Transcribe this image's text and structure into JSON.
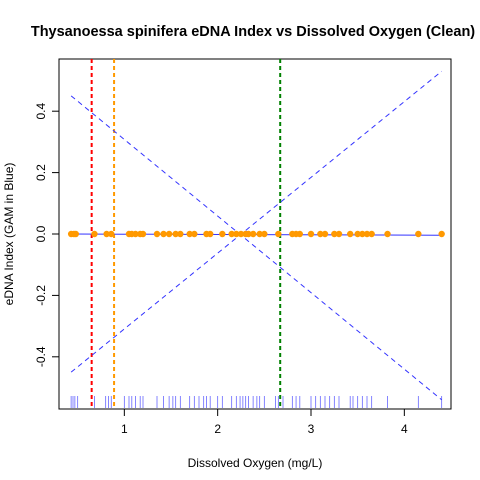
{
  "chart_data": {
    "type": "scatter",
    "title": "Thysanoessa spinifera eDNA Index vs Dissolved Oxygen (Clean)",
    "xlabel": "Dissolved Oxygen (mg/L)",
    "ylabel": "eDNA Index (GAM in Blue)",
    "xlim": [
      0.3,
      4.5
    ],
    "ylim": [
      -0.57,
      0.57
    ],
    "xticks": [
      1,
      2,
      3,
      4
    ],
    "yticks": [
      -0.4,
      -0.2,
      0.0,
      0.2,
      0.4
    ],
    "xtick_labels": [
      "1",
      "2",
      "3",
      "4"
    ],
    "ytick_labels": [
      "-0.4",
      "-0.2",
      "0.0",
      "0.2",
      "0.4"
    ],
    "grid": false,
    "points": {
      "color": "#ff9900",
      "x": [
        0.43,
        0.46,
        0.48,
        0.68,
        0.81,
        0.86,
        1.05,
        1.08,
        1.12,
        1.17,
        1.2,
        1.35,
        1.42,
        1.48,
        1.55,
        1.6,
        1.7,
        1.75,
        1.88,
        1.92,
        2.05,
        2.15,
        2.2,
        2.25,
        2.3,
        2.33,
        2.38,
        2.45,
        2.5,
        2.65,
        2.8,
        2.84,
        2.88,
        3.0,
        3.1,
        3.15,
        3.25,
        3.3,
        3.42,
        3.5,
        3.55,
        3.6,
        3.65,
        3.82,
        4.15,
        4.4
      ],
      "y": [
        0,
        0,
        0,
        0,
        0,
        0,
        0,
        0,
        0,
        0,
        0,
        0,
        0,
        0,
        0,
        0,
        0,
        0,
        0,
        0,
        0,
        0,
        0,
        0,
        0,
        0,
        0,
        0,
        0,
        0,
        0,
        0,
        0,
        0,
        0,
        0,
        0,
        0,
        0,
        0,
        0,
        0,
        0,
        0,
        0,
        0
      ]
    },
    "gam_fit": {
      "color": "#3333ff",
      "x": [
        0.43,
        4.4
      ],
      "y": [
        0.0,
        -0.004
      ]
    },
    "confidence_band": {
      "color": "#3333ff",
      "style": "dashed",
      "upper": {
        "x": [
          0.43,
          4.4
        ],
        "y": [
          -0.45,
          0.53
        ]
      },
      "lower": {
        "x": [
          0.43,
          4.4
        ],
        "y": [
          0.45,
          -0.54
        ]
      }
    },
    "vertical_lines": [
      {
        "x": 0.65,
        "color": "#ff0000",
        "style": "dashed"
      },
      {
        "x": 0.89,
        "color": "#ff9900",
        "style": "dashed"
      },
      {
        "x": 2.67,
        "color": "#008000",
        "style": "dashed"
      }
    ],
    "rug": {
      "color": "#3333ff",
      "x": [
        0.43,
        0.45,
        0.47,
        0.5,
        0.68,
        0.8,
        0.83,
        0.86,
        1.0,
        1.05,
        1.08,
        1.12,
        1.17,
        1.2,
        1.35,
        1.42,
        1.48,
        1.52,
        1.55,
        1.6,
        1.7,
        1.75,
        1.8,
        1.85,
        1.88,
        1.92,
        2.0,
        2.05,
        2.15,
        2.2,
        2.24,
        2.27,
        2.3,
        2.33,
        2.38,
        2.42,
        2.45,
        2.5,
        2.62,
        2.65,
        2.7,
        2.8,
        2.84,
        2.88,
        3.0,
        3.05,
        3.1,
        3.15,
        3.2,
        3.25,
        3.3,
        3.42,
        3.45,
        3.5,
        3.55,
        3.6,
        3.65,
        3.82,
        4.15,
        4.4
      ]
    }
  }
}
